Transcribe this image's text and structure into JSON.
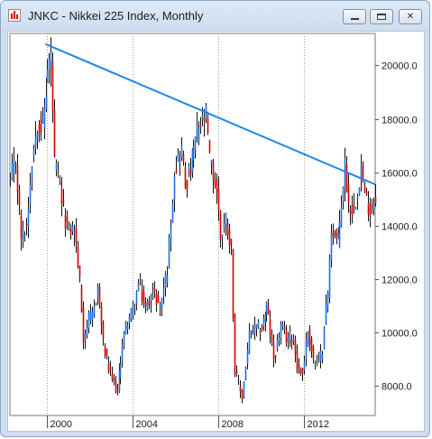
{
  "window": {
    "title": "JNKC - Nikkei 225 Index, Monthly",
    "buttons": {
      "minimize_icon": "minimize-icon",
      "maximize_icon": "maximize-icon",
      "close_icon": "close-icon",
      "close_glyph": "✕"
    }
  },
  "chart_data": {
    "type": "line",
    "subtype": "ohlc-bars",
    "title": "",
    "xlabel": "",
    "ylabel": "",
    "x_ticks": [
      "2000",
      "2004",
      "2008",
      "2012"
    ],
    "y_ticks": [
      "8000.0",
      "10000.0",
      "12000.0",
      "14000.0",
      "16000.0",
      "18000.0",
      "20000.0"
    ],
    "xlim": [
      "1998-04",
      "2015-05"
    ],
    "ylim": [
      6900,
      21200
    ],
    "grid": "vertical",
    "colors": {
      "up_bar": "#1c6fe6",
      "down_bar": "#d40000",
      "wick": "#111111",
      "trendline": "#1c86ee",
      "grid": "#a0a0a0"
    },
    "trendline": {
      "from": [
        "1999-12",
        20800
      ],
      "to": [
        "2015-05",
        15550
      ]
    },
    "monthly_close_path": [
      [
        "1998-04",
        15700
      ],
      [
        "1998-07",
        16400
      ],
      [
        "1998-10",
        13600
      ],
      [
        "1999-01",
        14000
      ],
      [
        "1999-04",
        16500
      ],
      [
        "1999-07",
        17900
      ],
      [
        "1999-10",
        17700
      ],
      [
        "2000-01",
        19800
      ],
      [
        "2000-03",
        20300
      ],
      [
        "2000-05",
        16300
      ],
      [
        "2000-07",
        15700
      ],
      [
        "2000-10",
        14500
      ],
      [
        "2001-01",
        13800
      ],
      [
        "2001-04",
        13900
      ],
      [
        "2001-07",
        11900
      ],
      [
        "2001-09",
        9800
      ],
      [
        "2001-12",
        10500
      ],
      [
        "2002-02",
        10600
      ],
      [
        "2002-05",
        11700
      ],
      [
        "2002-08",
        9600
      ],
      [
        "2002-11",
        8600
      ],
      [
        "2003-03",
        7900
      ],
      [
        "2003-04",
        7800
      ],
      [
        "2003-07",
        9600
      ],
      [
        "2003-10",
        10500
      ],
      [
        "2004-01",
        10800
      ],
      [
        "2004-04",
        11800
      ],
      [
        "2004-08",
        10900
      ],
      [
        "2004-12",
        11500
      ],
      [
        "2005-04",
        11000
      ],
      [
        "2005-08",
        12400
      ],
      [
        "2005-12",
        16100
      ],
      [
        "2006-04",
        16900
      ],
      [
        "2006-06",
        15500
      ],
      [
        "2006-09",
        16100
      ],
      [
        "2006-12",
        17200
      ],
      [
        "2007-02",
        17600
      ],
      [
        "2007-06",
        18100
      ],
      [
        "2007-08",
        16500
      ],
      [
        "2007-12",
        15300
      ],
      [
        "2008-02",
        13600
      ],
      [
        "2008-05",
        14300
      ],
      [
        "2008-08",
        13100
      ],
      [
        "2008-10",
        8500
      ],
      [
        "2009-02",
        7600
      ],
      [
        "2009-06",
        9900
      ],
      [
        "2009-09",
        10100
      ],
      [
        "2010-01",
        10200
      ],
      [
        "2010-04",
        11000
      ],
      [
        "2010-08",
        9000
      ],
      [
        "2010-12",
        10200
      ],
      [
        "2011-03",
        9800
      ],
      [
        "2011-07",
        9800
      ],
      [
        "2011-09",
        8700
      ],
      [
        "2011-12",
        8500
      ],
      [
        "2012-03",
        10100
      ],
      [
        "2012-06",
        9000
      ],
      [
        "2012-09",
        8900
      ],
      [
        "2012-11",
        9400
      ],
      [
        "2012-12",
        10400
      ],
      [
        "2013-02",
        11500
      ],
      [
        "2013-04",
        13900
      ],
      [
        "2013-05",
        13800
      ],
      [
        "2013-08",
        13400
      ],
      [
        "2013-12",
        16300
      ],
      [
        "2014-02",
        14800
      ],
      [
        "2014-05",
        14600
      ],
      [
        "2014-09",
        16200
      ],
      [
        "2014-11",
        15100
      ],
      [
        "2015-02",
        14600
      ],
      [
        "2015-05",
        15200
      ]
    ]
  }
}
